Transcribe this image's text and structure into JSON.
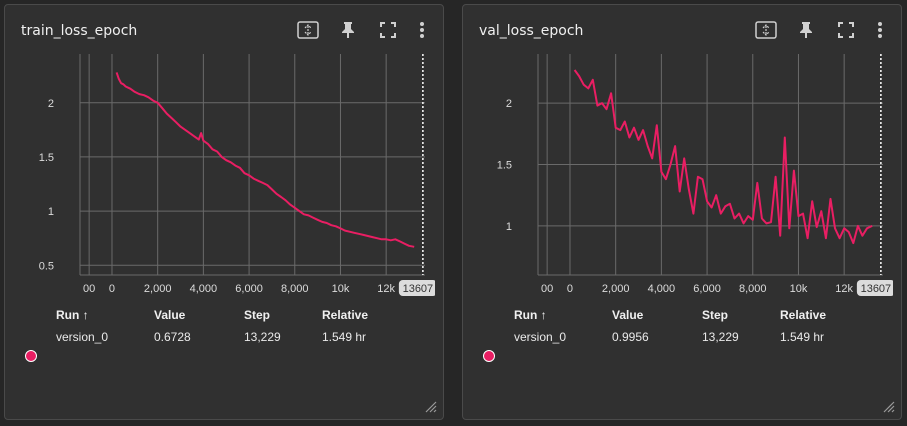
{
  "colors": {
    "line": "#e91e63",
    "grid": "#6a6a6a",
    "bg": "#303030"
  },
  "icons": [
    "fit-domain-icon",
    "pin-icon",
    "fullscreen-icon",
    "more-vert-icon"
  ],
  "legend_headers": {
    "run": "Run ↑",
    "value": "Value",
    "step": "Step",
    "relative": "Relative"
  },
  "cards": [
    {
      "title": "train_loss_epoch",
      "row": {
        "run": "version_0",
        "value": "0.6728",
        "step": "13,229",
        "relative": "1.549 hr"
      }
    },
    {
      "title": "val_loss_epoch",
      "row": {
        "run": "version_0",
        "value": "0.9956",
        "step": "13,229",
        "relative": "1.549 hr"
      }
    }
  ],
  "chart_data": [
    {
      "type": "line",
      "title": "train_loss_epoch",
      "x_ticks": [
        "00",
        "0",
        "2,000",
        "4,000",
        "6,000",
        "8,000",
        "10k",
        "12k"
      ],
      "y_ticks": [
        "0.5",
        "1",
        "1.5",
        "2"
      ],
      "x_marker_label": "13607",
      "xlim": [
        -1400,
        13700
      ],
      "ylim": [
        0.41,
        2.45
      ],
      "x_tick_values": [
        -1000,
        0,
        2000,
        4000,
        6000,
        8000,
        10000,
        12000
      ],
      "y_tick_values": [
        0.5,
        1,
        1.5,
        2
      ],
      "x_marker": 13607,
      "series": [
        {
          "x": [
            200,
            300,
            400,
            500,
            600,
            800,
            1000,
            1200,
            1400,
            1600,
            1800,
            2000,
            2200,
            2400,
            2600,
            2800,
            3000,
            3200,
            3400,
            3600,
            3800,
            3900,
            4000,
            4200,
            4400,
            4600,
            4800,
            5000,
            5200,
            5400,
            5600,
            5800,
            6000,
            6200,
            6400,
            6600,
            6800,
            7000,
            7200,
            7400,
            7600,
            7800,
            8000,
            8200,
            8400,
            8600,
            8800,
            9000,
            9200,
            9400,
            9600,
            9800,
            10000,
            10200,
            10400,
            10600,
            10800,
            11000,
            11200,
            11400,
            11600,
            11800,
            12000,
            12200,
            12400,
            12600,
            12800,
            13000,
            13229
          ],
          "y": [
            2.28,
            2.22,
            2.18,
            2.17,
            2.15,
            2.13,
            2.1,
            2.08,
            2.07,
            2.05,
            2.02,
            2.0,
            1.95,
            1.9,
            1.86,
            1.82,
            1.78,
            1.75,
            1.72,
            1.69,
            1.66,
            1.72,
            1.65,
            1.62,
            1.57,
            1.55,
            1.5,
            1.47,
            1.45,
            1.42,
            1.4,
            1.35,
            1.33,
            1.3,
            1.28,
            1.26,
            1.24,
            1.2,
            1.16,
            1.13,
            1.1,
            1.06,
            1.03,
            1.0,
            0.97,
            0.96,
            0.94,
            0.92,
            0.9,
            0.89,
            0.87,
            0.86,
            0.84,
            0.82,
            0.81,
            0.8,
            0.79,
            0.78,
            0.77,
            0.76,
            0.75,
            0.74,
            0.74,
            0.73,
            0.74,
            0.72,
            0.7,
            0.68,
            0.67
          ]
        }
      ]
    },
    {
      "type": "line",
      "title": "val_loss_epoch",
      "x_ticks": [
        "00",
        "0",
        "2,000",
        "4,000",
        "6,000",
        "8,000",
        "10k",
        "12k"
      ],
      "y_ticks": [
        "1",
        "1.5",
        "2"
      ],
      "x_marker_label": "13607",
      "xlim": [
        -1400,
        13700
      ],
      "ylim": [
        0.6,
        2.4
      ],
      "x_tick_values": [
        -1000,
        0,
        2000,
        4000,
        6000,
        8000,
        10000,
        12000
      ],
      "y_tick_values": [
        1,
        1.5,
        2
      ],
      "x_marker": 13607,
      "series": [
        {
          "x": [
            200,
            400,
            600,
            800,
            1000,
            1200,
            1400,
            1600,
            1800,
            2000,
            2200,
            2400,
            2600,
            2800,
            3000,
            3200,
            3400,
            3600,
            3800,
            4000,
            4200,
            4400,
            4600,
            4800,
            5000,
            5200,
            5400,
            5600,
            5800,
            6000,
            6200,
            6400,
            6600,
            6800,
            7000,
            7200,
            7400,
            7600,
            7800,
            8000,
            8200,
            8400,
            8600,
            8800,
            9000,
            9200,
            9400,
            9600,
            9800,
            10000,
            10200,
            10400,
            10600,
            10800,
            11000,
            11200,
            11400,
            11600,
            11800,
            12000,
            12200,
            12400,
            12600,
            12800,
            13000,
            13229
          ],
          "y": [
            2.27,
            2.22,
            2.15,
            2.12,
            2.19,
            1.98,
            2.0,
            1.95,
            2.08,
            1.8,
            1.78,
            1.85,
            1.72,
            1.8,
            1.7,
            1.78,
            1.65,
            1.55,
            1.82,
            1.44,
            1.38,
            1.5,
            1.65,
            1.28,
            1.55,
            1.3,
            1.1,
            1.4,
            1.38,
            1.2,
            1.15,
            1.25,
            1.1,
            1.16,
            1.18,
            1.06,
            1.1,
            1.02,
            1.08,
            1.05,
            1.35,
            1.06,
            1.02,
            1.03,
            1.4,
            0.92,
            1.72,
            0.98,
            1.45,
            1.08,
            1.1,
            0.9,
            1.2,
            0.99,
            1.12,
            0.9,
            1.22,
            0.98,
            0.9,
            0.98,
            0.95,
            0.86,
            1.0,
            0.92,
            0.98,
            1.0
          ]
        }
      ]
    }
  ]
}
